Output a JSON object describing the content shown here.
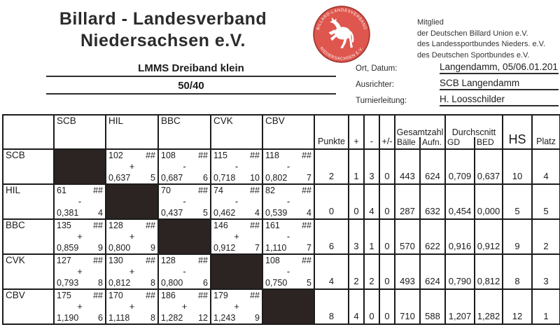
{
  "page": {
    "title_line1": "Billard - Landesverband",
    "title_line2": "Niedersachsen e.V.",
    "membership_lines": [
      "Mitglied",
      "der Deutschen Billard Union e.V.",
      "des Landessportbundes Nieders. e.V.",
      "des Deutschen Sportbundes e.V."
    ],
    "logo": {
      "ring_text_top": "BILLARD-LANDESVERBAND",
      "ring_text_bottom": "NIEDERSACHSEN E.V.",
      "symbol": "saxon-steed-horse",
      "bg_color": "#df564e",
      "outline_color": "#9e352e"
    }
  },
  "event": {
    "name": "LMMS Dreiband klein",
    "discipline_limit": "50/40",
    "info_fields": [
      {
        "label": "Ort, Datum:",
        "value": "Langendamm, 05/06.01.201"
      },
      {
        "label": "Ausrichter:",
        "value": "SCB Langendamm"
      },
      {
        "label": "Turnierleitung:",
        "value": "H. Loosschilder"
      }
    ]
  },
  "table": {
    "teams": [
      "SCB",
      "HIL",
      "BBC",
      "CVK",
      "CBV"
    ],
    "headers": {
      "punkte": "Punkte",
      "plus": "+",
      "minus": "-",
      "plusminus": "+/-",
      "gesamtzahl": "Gesamtzahl",
      "baelle": "Bälle",
      "aufn": "Aufn.",
      "durchschnitt": "Durchscnitt",
      "gd": "GD",
      "bed": "BED",
      "hs": "HS",
      "platz": "Platz"
    },
    "stat_keys": [
      "punkte",
      "plus",
      "minus",
      "plusminus",
      "baelle",
      "aufn",
      "gd",
      "bed",
      "hs",
      "platz"
    ],
    "rows": [
      {
        "team": "SCB",
        "matchups": [
          null,
          {
            "balls": "102",
            "hash": "##",
            "sign": "+",
            "avg": "0,637",
            "hs": "5"
          },
          {
            "balls": "108",
            "hash": "##",
            "sign": "-",
            "avg": "0,687",
            "hs": "6"
          },
          {
            "balls": "115",
            "hash": "##",
            "sign": "-",
            "avg": "0,718",
            "hs": "10"
          },
          {
            "balls": "118",
            "hash": "##",
            "sign": "-",
            "avg": "0,802",
            "hs": "7"
          }
        ],
        "stats": [
          "2",
          "1",
          "3",
          "0",
          "443",
          "624",
          "0,709",
          "0,637",
          "10",
          "4"
        ]
      },
      {
        "team": "HIL",
        "matchups": [
          {
            "balls": "61",
            "hash": "##",
            "sign": "-",
            "avg": "0,381",
            "hs": "4"
          },
          null,
          {
            "balls": "70",
            "hash": "##",
            "sign": "-",
            "avg": "0,437",
            "hs": "5"
          },
          {
            "balls": "74",
            "hash": "##",
            "sign": "-",
            "avg": "0,462",
            "hs": "4"
          },
          {
            "balls": "82",
            "hash": "##",
            "sign": "-",
            "avg": "0,539",
            "hs": "4"
          }
        ],
        "stats": [
          "0",
          "0",
          "4",
          "0",
          "287",
          "632",
          "0,454",
          "0,000",
          "5",
          "5"
        ]
      },
      {
        "team": "BBC",
        "matchups": [
          {
            "balls": "135",
            "hash": "##",
            "sign": "+",
            "avg": "0,859",
            "hs": "9"
          },
          {
            "balls": "128",
            "hash": "##",
            "sign": "+",
            "avg": "0,800",
            "hs": "9"
          },
          null,
          {
            "balls": "146",
            "hash": "##",
            "sign": "+",
            "avg": "0,912",
            "hs": "7"
          },
          {
            "balls": "161",
            "hash": "##",
            "sign": "-",
            "avg": "1,110",
            "hs": "7"
          }
        ],
        "stats": [
          "6",
          "3",
          "1",
          "0",
          "570",
          "622",
          "0,916",
          "0,912",
          "9",
          "2"
        ]
      },
      {
        "team": "CVK",
        "matchups": [
          {
            "balls": "127",
            "hash": "##",
            "sign": "+",
            "avg": "0,793",
            "hs": "8"
          },
          {
            "balls": "130",
            "hash": "##",
            "sign": "+",
            "avg": "0,812",
            "hs": "8"
          },
          {
            "balls": "128",
            "hash": "##",
            "sign": "-",
            "avg": "0,800",
            "hs": "6"
          },
          null,
          {
            "balls": "108",
            "hash": "##",
            "sign": "-",
            "avg": "0,750",
            "hs": "5"
          }
        ],
        "stats": [
          "4",
          "2",
          "2",
          "0",
          "493",
          "624",
          "0,790",
          "0,812",
          "8",
          "3"
        ]
      },
      {
        "team": "CBV",
        "matchups": [
          {
            "balls": "175",
            "hash": "##",
            "sign": "+",
            "avg": "1,190",
            "hs": "6"
          },
          {
            "balls": "170",
            "hash": "##",
            "sign": "+",
            "avg": "1,118",
            "hs": "8"
          },
          {
            "balls": "186",
            "hash": "##",
            "sign": "+",
            "avg": "1,282",
            "hs": "12"
          },
          {
            "balls": "179",
            "hash": "##",
            "sign": "+",
            "avg": "1,243",
            "hs": "9"
          },
          null
        ],
        "stats": [
          "8",
          "4",
          "0",
          "0",
          "710",
          "588",
          "1,207",
          "1,282",
          "12",
          "1"
        ]
      }
    ]
  }
}
